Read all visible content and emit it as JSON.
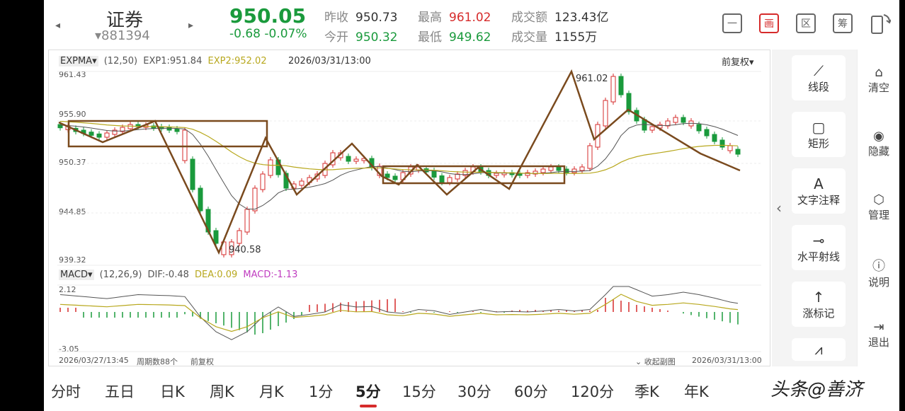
{
  "header": {
    "stock_name": "证券",
    "stock_code": "▾881394",
    "price": "950.05",
    "change": "-0.68  -0.07%",
    "prev_close_label": "昨收",
    "prev_close": "950.73",
    "open_label": "今开",
    "open": "950.32",
    "high_label": "最高",
    "high": "961.02",
    "low_label": "最低",
    "low": "949.62",
    "amount_label": "成交额",
    "amount": "123.43亿",
    "volume_label": "成交量",
    "volume": "1155万",
    "tools": [
      "一",
      "画",
      "区",
      "筹"
    ]
  },
  "chart": {
    "expma_label": "EXPMA▾",
    "expma_params": "(12,50)",
    "exp1": "EXP1:951.84",
    "exp2": "EXP2:952.02",
    "datetime": "2026/03/31/13:00",
    "adjust": "前复权▾",
    "y_labels": [
      "961.43",
      "955.90",
      "950.37",
      "944.85",
      "939.32"
    ],
    "high_mark": "961.02",
    "low_mark": "940.58",
    "macd_label": "MACD▾",
    "macd_params": "(12,26,9)",
    "dif": "DIF:-0.48",
    "dea": "DEA:0.09",
    "macd": "MACD:-1.13",
    "macd_y_top": "2.12",
    "macd_y_bottom": "-3.05",
    "start_time": "2026/03/27/13:45",
    "period_count": "周期数88个",
    "adjust2": "前复权",
    "collapse": "收起副图",
    "end_time": "2026/03/31/13:00"
  },
  "draw_tools": [
    "线段",
    "矩形",
    "文字注释",
    "水平射线",
    "涨标记"
  ],
  "side_tools": [
    "清空",
    "隐藏",
    "管理",
    "说明",
    "退出"
  ],
  "tabs": [
    "分时",
    "五日",
    "日K",
    "周K",
    "月K",
    "1分",
    "5分",
    "15分",
    "30分",
    "60分",
    "120分",
    "季K",
    "年K"
  ],
  "active_tab": "5分",
  "watermark": "头条@善济",
  "colors": {
    "up": "#d62b2b",
    "down": "#1a9a3c",
    "drawing": "#7a4a1e",
    "exp2": "#b8a81e"
  }
}
